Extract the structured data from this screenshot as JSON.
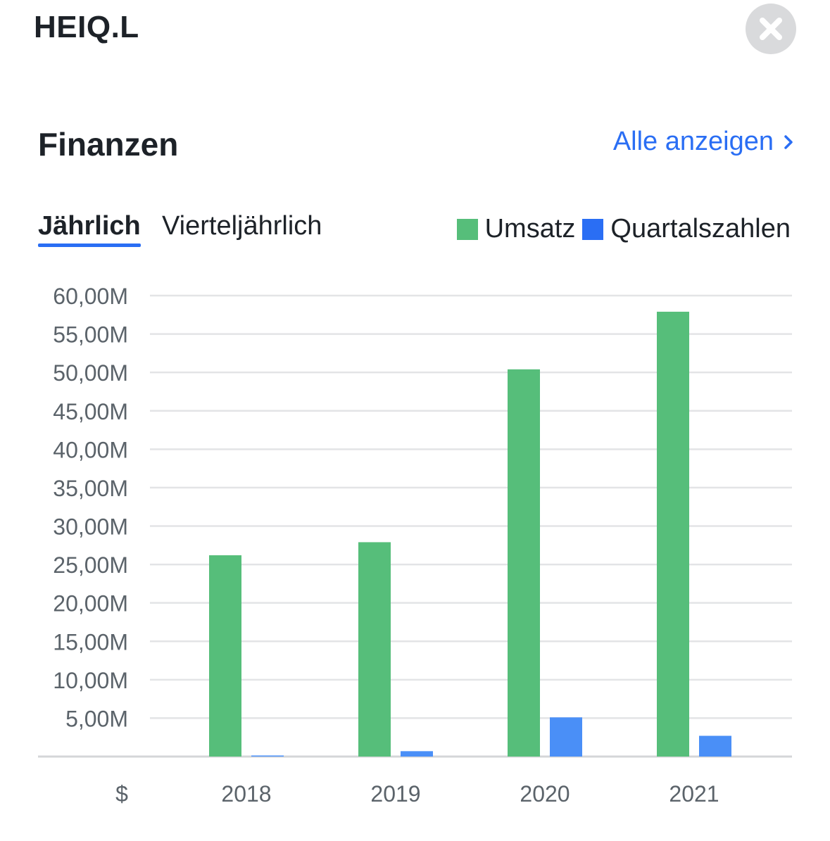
{
  "header": {
    "ticker": "HEIQ.L",
    "close_icon": "close-icon"
  },
  "section": {
    "title": "Finanzen",
    "see_all_label": "Alle anzeigen",
    "see_all_icon": "chevron-right-icon"
  },
  "tabs": [
    {
      "label": "Jährlich",
      "active": true
    },
    {
      "label": "Vierteljährlich",
      "active": false
    }
  ],
  "legend": [
    {
      "label": "Umsatz",
      "color": "#56be7a"
    },
    {
      "label": "Quartalszahlen",
      "color": "#2a6ef4"
    }
  ],
  "chart_data": {
    "type": "bar",
    "categories": [
      "2018",
      "2019",
      "2020",
      "2021"
    ],
    "series": [
      {
        "name": "Umsatz",
        "color": "#56be7a",
        "values": [
          26.2,
          27.9,
          50.4,
          57.9
        ]
      },
      {
        "name": "Quartalszahlen",
        "color": "#4a8ff7",
        "values": [
          0.05,
          0.7,
          5.1,
          2.7
        ]
      }
    ],
    "ylim": [
      0,
      60
    ],
    "yticks": [
      5,
      10,
      15,
      20,
      25,
      30,
      35,
      40,
      45,
      50,
      55,
      60
    ],
    "ytick_labels": [
      "5,00M",
      "10,00M",
      "15,00M",
      "20,00M",
      "25,00M",
      "30,00M",
      "35,00M",
      "40,00M",
      "45,00M",
      "50,00M",
      "55,00M",
      "60,00M"
    ],
    "currency_label": "$",
    "grid": true,
    "legend_position": "top-right"
  }
}
